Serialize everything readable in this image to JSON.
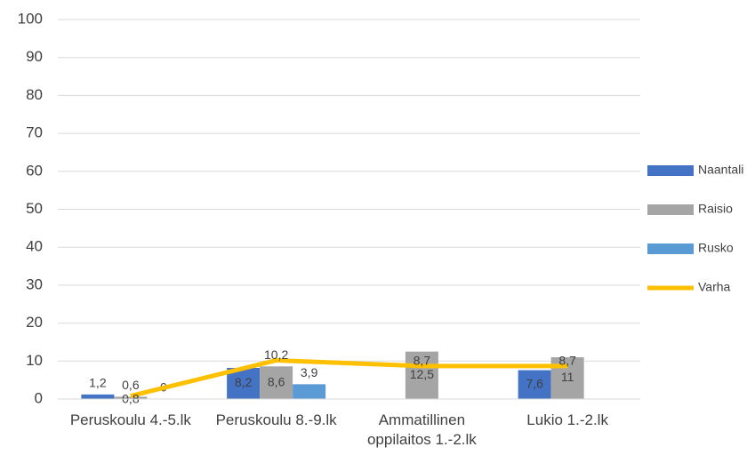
{
  "chart_data": {
    "type": "bar_line",
    "categories": [
      "Peruskoulu 4.-5.lk",
      "Peruskoulu 8.-9.lk",
      "Ammatillinen oppilaitos 1.-2.lk",
      "Lukio 1.-2.lk"
    ],
    "series": [
      {
        "name": "Naantali",
        "type": "bar",
        "color": "#4472c4",
        "values": [
          1.2,
          8.2,
          null,
          7.6
        ],
        "value_labels": [
          "1,2",
          "8,2",
          null,
          "7,6"
        ]
      },
      {
        "name": "Raisio",
        "type": "bar",
        "color": "#a5a5a5",
        "values": [
          0.6,
          8.6,
          12.5,
          11
        ],
        "value_labels": [
          "0,6",
          "8,6",
          "12,5",
          "11"
        ]
      },
      {
        "name": "Rusko",
        "type": "bar",
        "color": "#5b9bd5",
        "values": [
          0,
          3.9,
          null,
          null
        ],
        "value_labels": [
          "0",
          "3,9",
          null,
          null
        ]
      },
      {
        "name": "Varha",
        "type": "line",
        "color": "#ffc000",
        "values": [
          0.8,
          10.2,
          8.7,
          8.7
        ],
        "value_labels": [
          "0,8",
          "10,2",
          "8,7",
          "8,7"
        ]
      }
    ],
    "ylim": [
      0,
      100
    ],
    "yticks": [
      0,
      10,
      20,
      30,
      40,
      50,
      60,
      70,
      80,
      90,
      100
    ],
    "grid": true,
    "legend": "right"
  }
}
